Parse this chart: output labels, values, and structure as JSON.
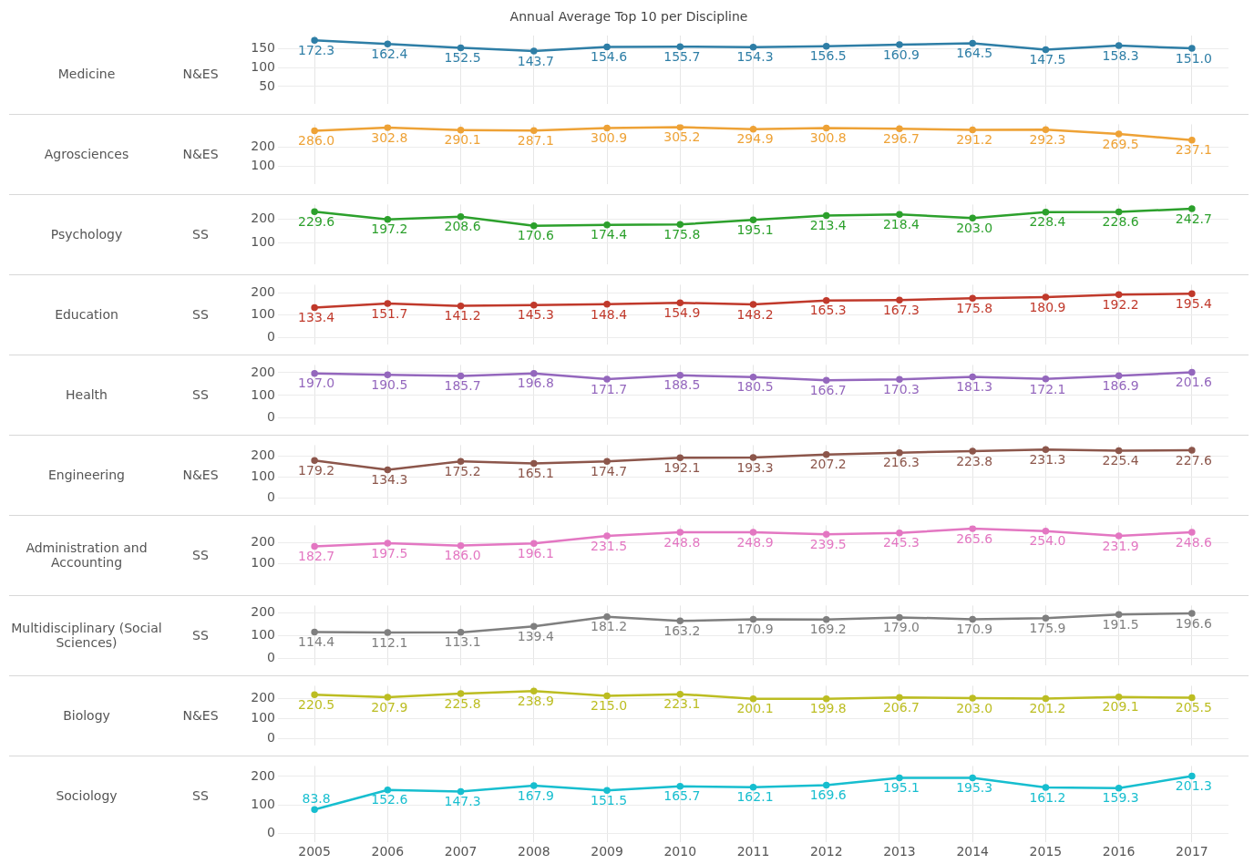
{
  "chart_data": [
    {
      "type": "line",
      "ylabel": "Medicine",
      "data_labels": true,
      "subtitle": "N&ES",
      "annotations": [
        "Annual Average Top 10 per Discipline"
      ],
      "categories": [
        "2005",
        "2006",
        "2007",
        "2008",
        "2009",
        "2010",
        "2011",
        "2012",
        "2013",
        "2014",
        "2015",
        "2016",
        "2017"
      ],
      "series": [
        {
          "color": "#2e7ea6",
          "values": [
            172.3,
            162.4,
            152.5,
            143.7,
            154.6,
            155.7,
            154.3,
            156.5,
            160.9,
            164.5,
            147.5,
            158.3,
            151.0
          ],
          "value_labels": [
            "172.3",
            "162.4",
            "152.5",
            "143.7",
            "154.6",
            "155.7",
            "154.3",
            "156.5",
            "160.9",
            "164.5",
            "147.5",
            "158.3",
            "151.0"
          ]
        }
      ],
      "ylim": [
        5,
        185
      ],
      "yticks": [
        50,
        100,
        150
      ],
      "grid": true,
      "marker": "circle",
      "tick_labels": "y"
    },
    {
      "type": "line",
      "ylabel": "Agrosciences",
      "data_labels": true,
      "subtitle": "N&ES",
      "categories": [
        "2005",
        "2006",
        "2007",
        "2008",
        "2009",
        "2010",
        "2011",
        "2012",
        "2013",
        "2014",
        "2015",
        "2016",
        "2017"
      ],
      "series": [
        {
          "color": "#eea236",
          "values": [
            286.0,
            302.8,
            290.1,
            287.1,
            300.9,
            305.2,
            294.9,
            300.8,
            296.7,
            291.2,
            292.3,
            269.5,
            237.1
          ],
          "value_labels": [
            "286.0",
            "302.8",
            "290.1",
            "287.1",
            "300.9",
            "305.2",
            "294.9",
            "300.8",
            "296.7",
            "291.2",
            "292.3",
            "269.5",
            "237.1"
          ]
        }
      ],
      "ylim": [
        10,
        320
      ],
      "yticks": [
        100,
        200
      ],
      "grid": true,
      "marker": "circle",
      "tick_labels": "y"
    },
    {
      "type": "line",
      "ylabel": "Psychology",
      "data_labels": true,
      "subtitle": "SS",
      "categories": [
        "2005",
        "2006",
        "2007",
        "2008",
        "2009",
        "2010",
        "2011",
        "2012",
        "2013",
        "2014",
        "2015",
        "2016",
        "2017"
      ],
      "series": [
        {
          "color": "#2ca02c",
          "values": [
            229.6,
            197.2,
            208.6,
            170.6,
            174.4,
            175.8,
            195.1,
            213.4,
            218.4,
            203.0,
            228.4,
            228.6,
            242.7
          ],
          "value_labels": [
            "229.6",
            "197.2",
            "208.6",
            "170.6",
            "174.4",
            "175.8",
            "195.1",
            "213.4",
            "218.4",
            "203.0",
            "228.4",
            "228.6",
            "242.7"
          ]
        }
      ],
      "ylim": [
        10,
        260
      ],
      "yticks": [
        100,
        200
      ],
      "grid": true,
      "marker": "circle",
      "tick_labels": "y"
    },
    {
      "type": "line",
      "ylabel": "Education",
      "data_labels": true,
      "subtitle": "SS",
      "categories": [
        "2005",
        "2006",
        "2007",
        "2008",
        "2009",
        "2010",
        "2011",
        "2012",
        "2013",
        "2014",
        "2015",
        "2016",
        "2017"
      ],
      "series": [
        {
          "color": "#c0392b",
          "values": [
            133.4,
            151.7,
            141.2,
            145.3,
            148.4,
            154.9,
            148.2,
            165.3,
            167.3,
            175.8,
            180.9,
            192.2,
            195.4
          ],
          "value_labels": [
            "133.4",
            "151.7",
            "141.2",
            "145.3",
            "148.4",
            "154.9",
            "148.2",
            "165.3",
            "167.3",
            "175.8",
            "180.9",
            "192.2",
            "195.4"
          ]
        }
      ],
      "ylim": [
        -30,
        236
      ],
      "yticks": [
        0,
        100,
        200
      ],
      "grid": true,
      "marker": "circle",
      "tick_labels": "y"
    },
    {
      "type": "line",
      "ylabel": "Health",
      "data_labels": true,
      "subtitle": "SS",
      "categories": [
        "2005",
        "2006",
        "2007",
        "2008",
        "2009",
        "2010",
        "2011",
        "2012",
        "2013",
        "2014",
        "2015",
        "2016",
        "2017"
      ],
      "series": [
        {
          "color": "#9467bd",
          "values": [
            197.0,
            190.5,
            185.7,
            196.8,
            171.7,
            188.5,
            180.5,
            166.7,
            170.3,
            181.3,
            172.1,
            186.9,
            201.6
          ],
          "value_labels": [
            "197.0",
            "190.5",
            "185.7",
            "196.8",
            "171.7",
            "188.5",
            "180.5",
            "166.7",
            "170.3",
            "181.3",
            "172.1",
            "186.9",
            "201.6"
          ]
        }
      ],
      "ylim": [
        -27,
        234
      ],
      "yticks": [
        0,
        100,
        200
      ],
      "grid": true,
      "marker": "circle",
      "tick_labels": "y"
    },
    {
      "type": "line",
      "ylabel": "Engineering",
      "data_labels": true,
      "subtitle": "N&ES",
      "categories": [
        "2005",
        "2006",
        "2007",
        "2008",
        "2009",
        "2010",
        "2011",
        "2012",
        "2013",
        "2014",
        "2015",
        "2016",
        "2017"
      ],
      "series": [
        {
          "color": "#8c564b",
          "values": [
            179.2,
            134.3,
            175.2,
            165.1,
            174.7,
            192.1,
            193.3,
            207.2,
            216.3,
            223.8,
            231.3,
            225.4,
            227.6
          ],
          "value_labels": [
            "179.2",
            "134.3",
            "175.2",
            "165.1",
            "174.7",
            "192.1",
            "193.3",
            "207.2",
            "216.3",
            "223.8",
            "231.3",
            "225.4",
            "227.6"
          ]
        }
      ],
      "ylim": [
        -30,
        252
      ],
      "yticks": [
        0,
        100,
        200
      ],
      "grid": true,
      "marker": "circle",
      "tick_labels": "y"
    },
    {
      "type": "line",
      "ylabel": "Administration and Accounting",
      "data_labels": true,
      "subtitle": "SS",
      "categories": [
        "2005",
        "2006",
        "2007",
        "2008",
        "2009",
        "2010",
        "2011",
        "2012",
        "2013",
        "2014",
        "2015",
        "2016",
        "2017"
      ],
      "series": [
        {
          "color": "#e377c2",
          "values": [
            182.7,
            197.5,
            186.0,
            196.1,
            231.5,
            248.8,
            248.9,
            239.5,
            245.3,
            265.6,
            254.0,
            231.9,
            248.6
          ],
          "value_labels": [
            "182.7",
            "197.5",
            "186.0",
            "196.1",
            "231.5",
            "248.8",
            "248.9",
            "239.5",
            "245.3",
            "265.6",
            "254.0",
            "231.9",
            "248.6"
          ]
        }
      ],
      "ylim": [
        3,
        281
      ],
      "yticks": [
        100,
        200
      ],
      "grid": true,
      "marker": "circle",
      "tick_labels": "y"
    },
    {
      "type": "line",
      "ylabel": "Multidisciplinary (Social Sciences)",
      "data_labels": true,
      "subtitle": "SS",
      "categories": [
        "2005",
        "2006",
        "2007",
        "2008",
        "2009",
        "2010",
        "2011",
        "2012",
        "2013",
        "2014",
        "2015",
        "2016",
        "2017"
      ],
      "series": [
        {
          "color": "#7f7f7f",
          "values": [
            114.4,
            112.1,
            113.1,
            139.4,
            181.2,
            163.2,
            170.9,
            169.2,
            179.0,
            170.9,
            175.9,
            191.5,
            196.6
          ],
          "value_labels": [
            "114.4",
            "112.1",
            "113.1",
            "139.4",
            "181.2",
            "163.2",
            "170.9",
            "169.2",
            "179.0",
            "170.9",
            "175.9",
            "191.5",
            "196.6"
          ]
        }
      ],
      "ylim": [
        -30,
        231
      ],
      "yticks": [
        0,
        100,
        200
      ],
      "grid": true,
      "marker": "circle",
      "tick_labels": "y"
    },
    {
      "type": "line",
      "ylabel": "Biology",
      "data_labels": true,
      "subtitle": "N&ES",
      "categories": [
        "2005",
        "2006",
        "2007",
        "2008",
        "2009",
        "2010",
        "2011",
        "2012",
        "2013",
        "2014",
        "2015",
        "2016",
        "2017"
      ],
      "series": [
        {
          "color": "#bcbd22",
          "values": [
            220.5,
            207.9,
            225.8,
            238.9,
            215.0,
            223.1,
            200.1,
            199.8,
            206.7,
            203.0,
            201.2,
            209.1,
            205.5
          ],
          "value_labels": [
            "220.5",
            "207.9",
            "225.8",
            "238.9",
            "215.0",
            "223.1",
            "200.1",
            "199.8",
            "206.7",
            "203.0",
            "201.2",
            "209.1",
            "205.5"
          ]
        }
      ],
      "ylim": [
        -31,
        265
      ],
      "yticks": [
        0,
        100,
        200
      ],
      "grid": true,
      "marker": "circle",
      "tick_labels": "y"
    },
    {
      "type": "line",
      "ylabel": "Sociology",
      "data_labels": true,
      "subtitle": "SS",
      "categories": [
        "2005",
        "2006",
        "2007",
        "2008",
        "2009",
        "2010",
        "2011",
        "2012",
        "2013",
        "2014",
        "2015",
        "2016",
        "2017"
      ],
      "series": [
        {
          "color": "#17becf",
          "values": [
            83.8,
            152.6,
            147.3,
            167.9,
            151.5,
            165.7,
            162.1,
            169.6,
            195.1,
            195.3,
            161.2,
            159.3,
            201.3
          ],
          "value_labels": [
            "83.8",
            "152.6",
            "147.3",
            "167.9",
            "151.5",
            "165.7",
            "162.1",
            "169.6",
            "195.1",
            "195.3",
            "161.2",
            "159.3",
            "201.3"
          ]
        }
      ],
      "ylim": [
        -31,
        237
      ],
      "yticks": [
        0,
        100,
        200
      ],
      "grid": true,
      "marker": "circle"
    }
  ]
}
